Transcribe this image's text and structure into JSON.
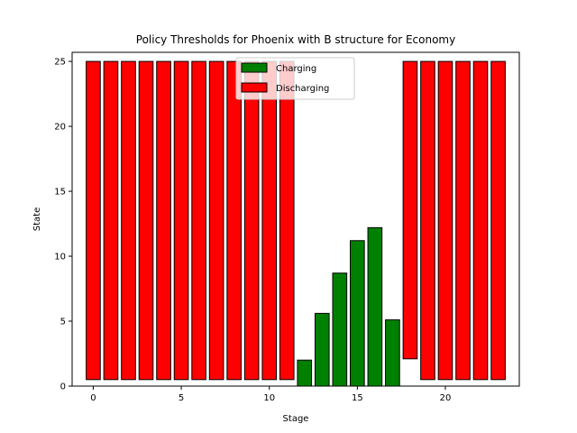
{
  "chart_data": {
    "type": "bar",
    "title": "Policy Thresholds for Phoenix with B structure for Economy",
    "xlabel": "Stage",
    "ylabel": "State",
    "xlim": [
      -1.2,
      24.2
    ],
    "ylim": [
      0,
      25.7
    ],
    "xticks": [
      0,
      5,
      10,
      15,
      20
    ],
    "yticks": [
      0,
      5,
      10,
      15,
      20,
      25
    ],
    "grid": false,
    "legend_placement": "top-center",
    "bar_width": 0.8,
    "series": [
      {
        "name": "Charging",
        "color": "#008000",
        "bars": [
          {
            "x": 12,
            "bottom": 0,
            "top": 2.0
          },
          {
            "x": 13,
            "bottom": 0,
            "top": 5.6
          },
          {
            "x": 14,
            "bottom": 0,
            "top": 8.7
          },
          {
            "x": 15,
            "bottom": 0,
            "top": 11.2
          },
          {
            "x": 16,
            "bottom": 0,
            "top": 12.2
          },
          {
            "x": 17,
            "bottom": 0,
            "top": 5.1
          }
        ]
      },
      {
        "name": "Discharging",
        "color": "#ff0000",
        "bars": [
          {
            "x": 0,
            "bottom": 0.5,
            "top": 25
          },
          {
            "x": 1,
            "bottom": 0.5,
            "top": 25
          },
          {
            "x": 2,
            "bottom": 0.5,
            "top": 25
          },
          {
            "x": 3,
            "bottom": 0.5,
            "top": 25
          },
          {
            "x": 4,
            "bottom": 0.5,
            "top": 25
          },
          {
            "x": 5,
            "bottom": 0.5,
            "top": 25
          },
          {
            "x": 6,
            "bottom": 0.5,
            "top": 25
          },
          {
            "x": 7,
            "bottom": 0.5,
            "top": 25
          },
          {
            "x": 8,
            "bottom": 0.5,
            "top": 25
          },
          {
            "x": 9,
            "bottom": 0.5,
            "top": 25
          },
          {
            "x": 10,
            "bottom": 0.5,
            "top": 25
          },
          {
            "x": 11,
            "bottom": 0.5,
            "top": 25
          },
          {
            "x": 18,
            "bottom": 2.1,
            "top": 25
          },
          {
            "x": 19,
            "bottom": 0.5,
            "top": 25
          },
          {
            "x": 20,
            "bottom": 0.5,
            "top": 25
          },
          {
            "x": 21,
            "bottom": 0.5,
            "top": 25
          },
          {
            "x": 22,
            "bottom": 0.5,
            "top": 25
          },
          {
            "x": 23,
            "bottom": 0.5,
            "top": 25
          }
        ]
      }
    ]
  }
}
